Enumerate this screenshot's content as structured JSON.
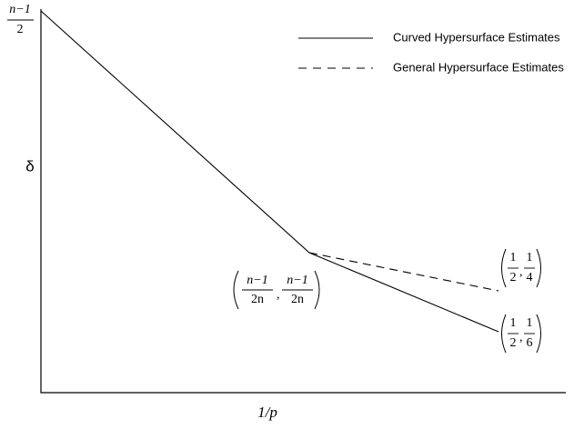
{
  "y_axis": {
    "label": "δ",
    "top_label": {
      "numerator": "n−1",
      "denominator": "2"
    }
  },
  "x_axis": {
    "label": "1/p"
  },
  "legend": {
    "items": [
      {
        "name": "Curved Hypersurface Estimates",
        "style": "solid"
      },
      {
        "name": "General Hypersurface Estimates",
        "style": "dashed"
      }
    ]
  },
  "points": [
    {
      "first": {
        "numerator": "n−1",
        "denominator": "2n"
      },
      "second": {
        "numerator": "n−1",
        "denominator": "2n"
      }
    },
    {
      "first": {
        "numerator": "1",
        "denominator": "2"
      },
      "second": {
        "numerator": "1",
        "denominator": "4"
      }
    },
    {
      "first": {
        "numerator": "1",
        "denominator": "2"
      },
      "second": {
        "numerator": "1",
        "denominator": "6"
      }
    }
  ]
}
